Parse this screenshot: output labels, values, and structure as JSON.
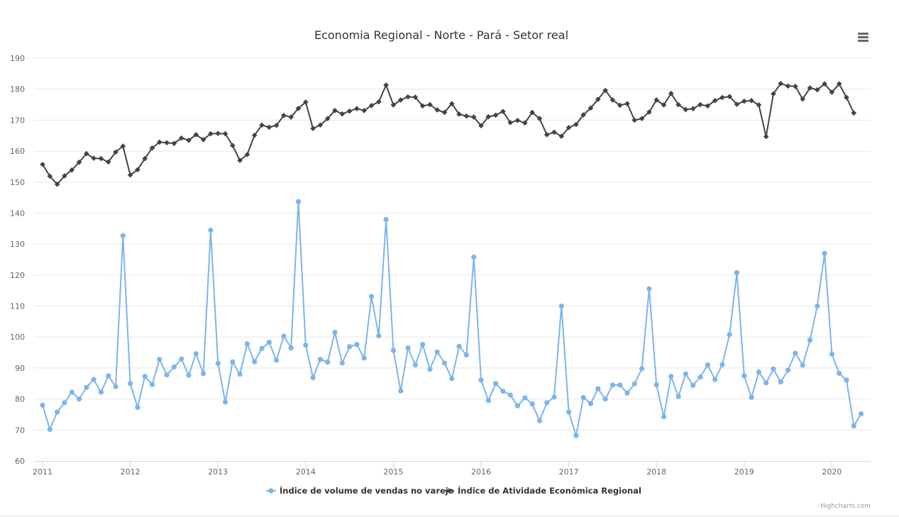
{
  "title": "Economia Regional - Norte - Pará - Setor real",
  "menu_icon": "hamburger-menu-icon",
  "credits": "Highcharts.com",
  "chart_data": {
    "type": "line",
    "title": "Economia Regional - Norte - Pará - Setor real",
    "xlabel": "",
    "ylabel": "",
    "ylim": [
      60,
      190
    ],
    "y_ticks": [
      "60",
      "70",
      "80",
      "90",
      "100",
      "110",
      "120",
      "130",
      "140",
      "150",
      "160",
      "170",
      "180",
      "190"
    ],
    "x_ticks": [
      "2011",
      "2012",
      "2013",
      "2014",
      "2015",
      "2016",
      "2017",
      "2018",
      "2019",
      "2020"
    ],
    "x_start": "2011-01",
    "x_frequency": "monthly",
    "grid": true,
    "legend_position": "bottom-center",
    "series": [
      {
        "name": "Índice de volume de vendas no varejo",
        "color": "#7cb5ec",
        "marker": "circle",
        "values": [
          78,
          70.2,
          75.8,
          78.8,
          82.2,
          80,
          83.7,
          86.3,
          82.2,
          87.5,
          84,
          132.7,
          85,
          77.3,
          87.3,
          84.7,
          92.8,
          87.8,
          90.3,
          92.9,
          87.7,
          94.6,
          88.2,
          134.5,
          91.5,
          79,
          92,
          88,
          97.8,
          92,
          96.3,
          98.3,
          92.5,
          100.3,
          96.5,
          143.7,
          97.4,
          86.9,
          92.8,
          91.9,
          101.5,
          91.6,
          96.9,
          97.6,
          93.2,
          113.1,
          100.4,
          137.9,
          95.7,
          82.6,
          96.5,
          91,
          97.6,
          89.6,
          95.2,
          91.6,
          86.6,
          97,
          94.2,
          125.8,
          86.1,
          79.5,
          85,
          82.5,
          81.3,
          77.8,
          80.4,
          78.4,
          73,
          78.8,
          80.6,
          110,
          75.8,
          68.2,
          80.5,
          78.5,
          83.3,
          80,
          84.5,
          84.5,
          81.9,
          84.9,
          89.8,
          115.6,
          84.6,
          74.3,
          87.3,
          80.8,
          88.1,
          84.4,
          87.1,
          91,
          86.3,
          91.1,
          100.8,
          120.8,
          87.5,
          80.5,
          88.7,
          85.2,
          89.7,
          85.5,
          89.3,
          94.8,
          90.9,
          99,
          110,
          127,
          94.5,
          88.3,
          86.1,
          71.3,
          75.2
        ]
      },
      {
        "name": "Índice de Atividade Econômica Regional",
        "color": "#434348",
        "marker": "diamond",
        "values": [
          155.7,
          151.9,
          149.3,
          152,
          153.9,
          156.4,
          159.2,
          157.7,
          157.6,
          156.5,
          159.7,
          161.6,
          152.3,
          154,
          157.6,
          161,
          162.9,
          162.7,
          162.5,
          164.2,
          163.5,
          165.3,
          163.7,
          165.6,
          165.7,
          165.6,
          161.8,
          157,
          158.9,
          165.1,
          168.4,
          167.7,
          168.3,
          171.5,
          171,
          173.8,
          175.8,
          167.3,
          168.4,
          170.5,
          173.1,
          172,
          172.9,
          173.7,
          173.1,
          174.7,
          175.9,
          181.3,
          174.9,
          176.5,
          177.5,
          177.4,
          174.6,
          175,
          173.3,
          172.5,
          175.3,
          171.9,
          171.3,
          171,
          168.2,
          171.1,
          171.6,
          172.8,
          169.2,
          169.9,
          169.1,
          172.5,
          170.5,
          165.3,
          166.1,
          164.8,
          167.6,
          168.6,
          171.7,
          173.9,
          176.7,
          179.6,
          176.5,
          174.8,
          175.3,
          170,
          170.5,
          172.6,
          176.5,
          174.9,
          178.6,
          175,
          173.4,
          173.7,
          175,
          174.6,
          176.3,
          177.3,
          177.6,
          175.1,
          176.1,
          176.3,
          174.9,
          164.7,
          178.5,
          181.8,
          181,
          180.9,
          176.8,
          180.4,
          179.8,
          181.7,
          179,
          181.7,
          177.3,
          172.3
        ]
      }
    ]
  }
}
